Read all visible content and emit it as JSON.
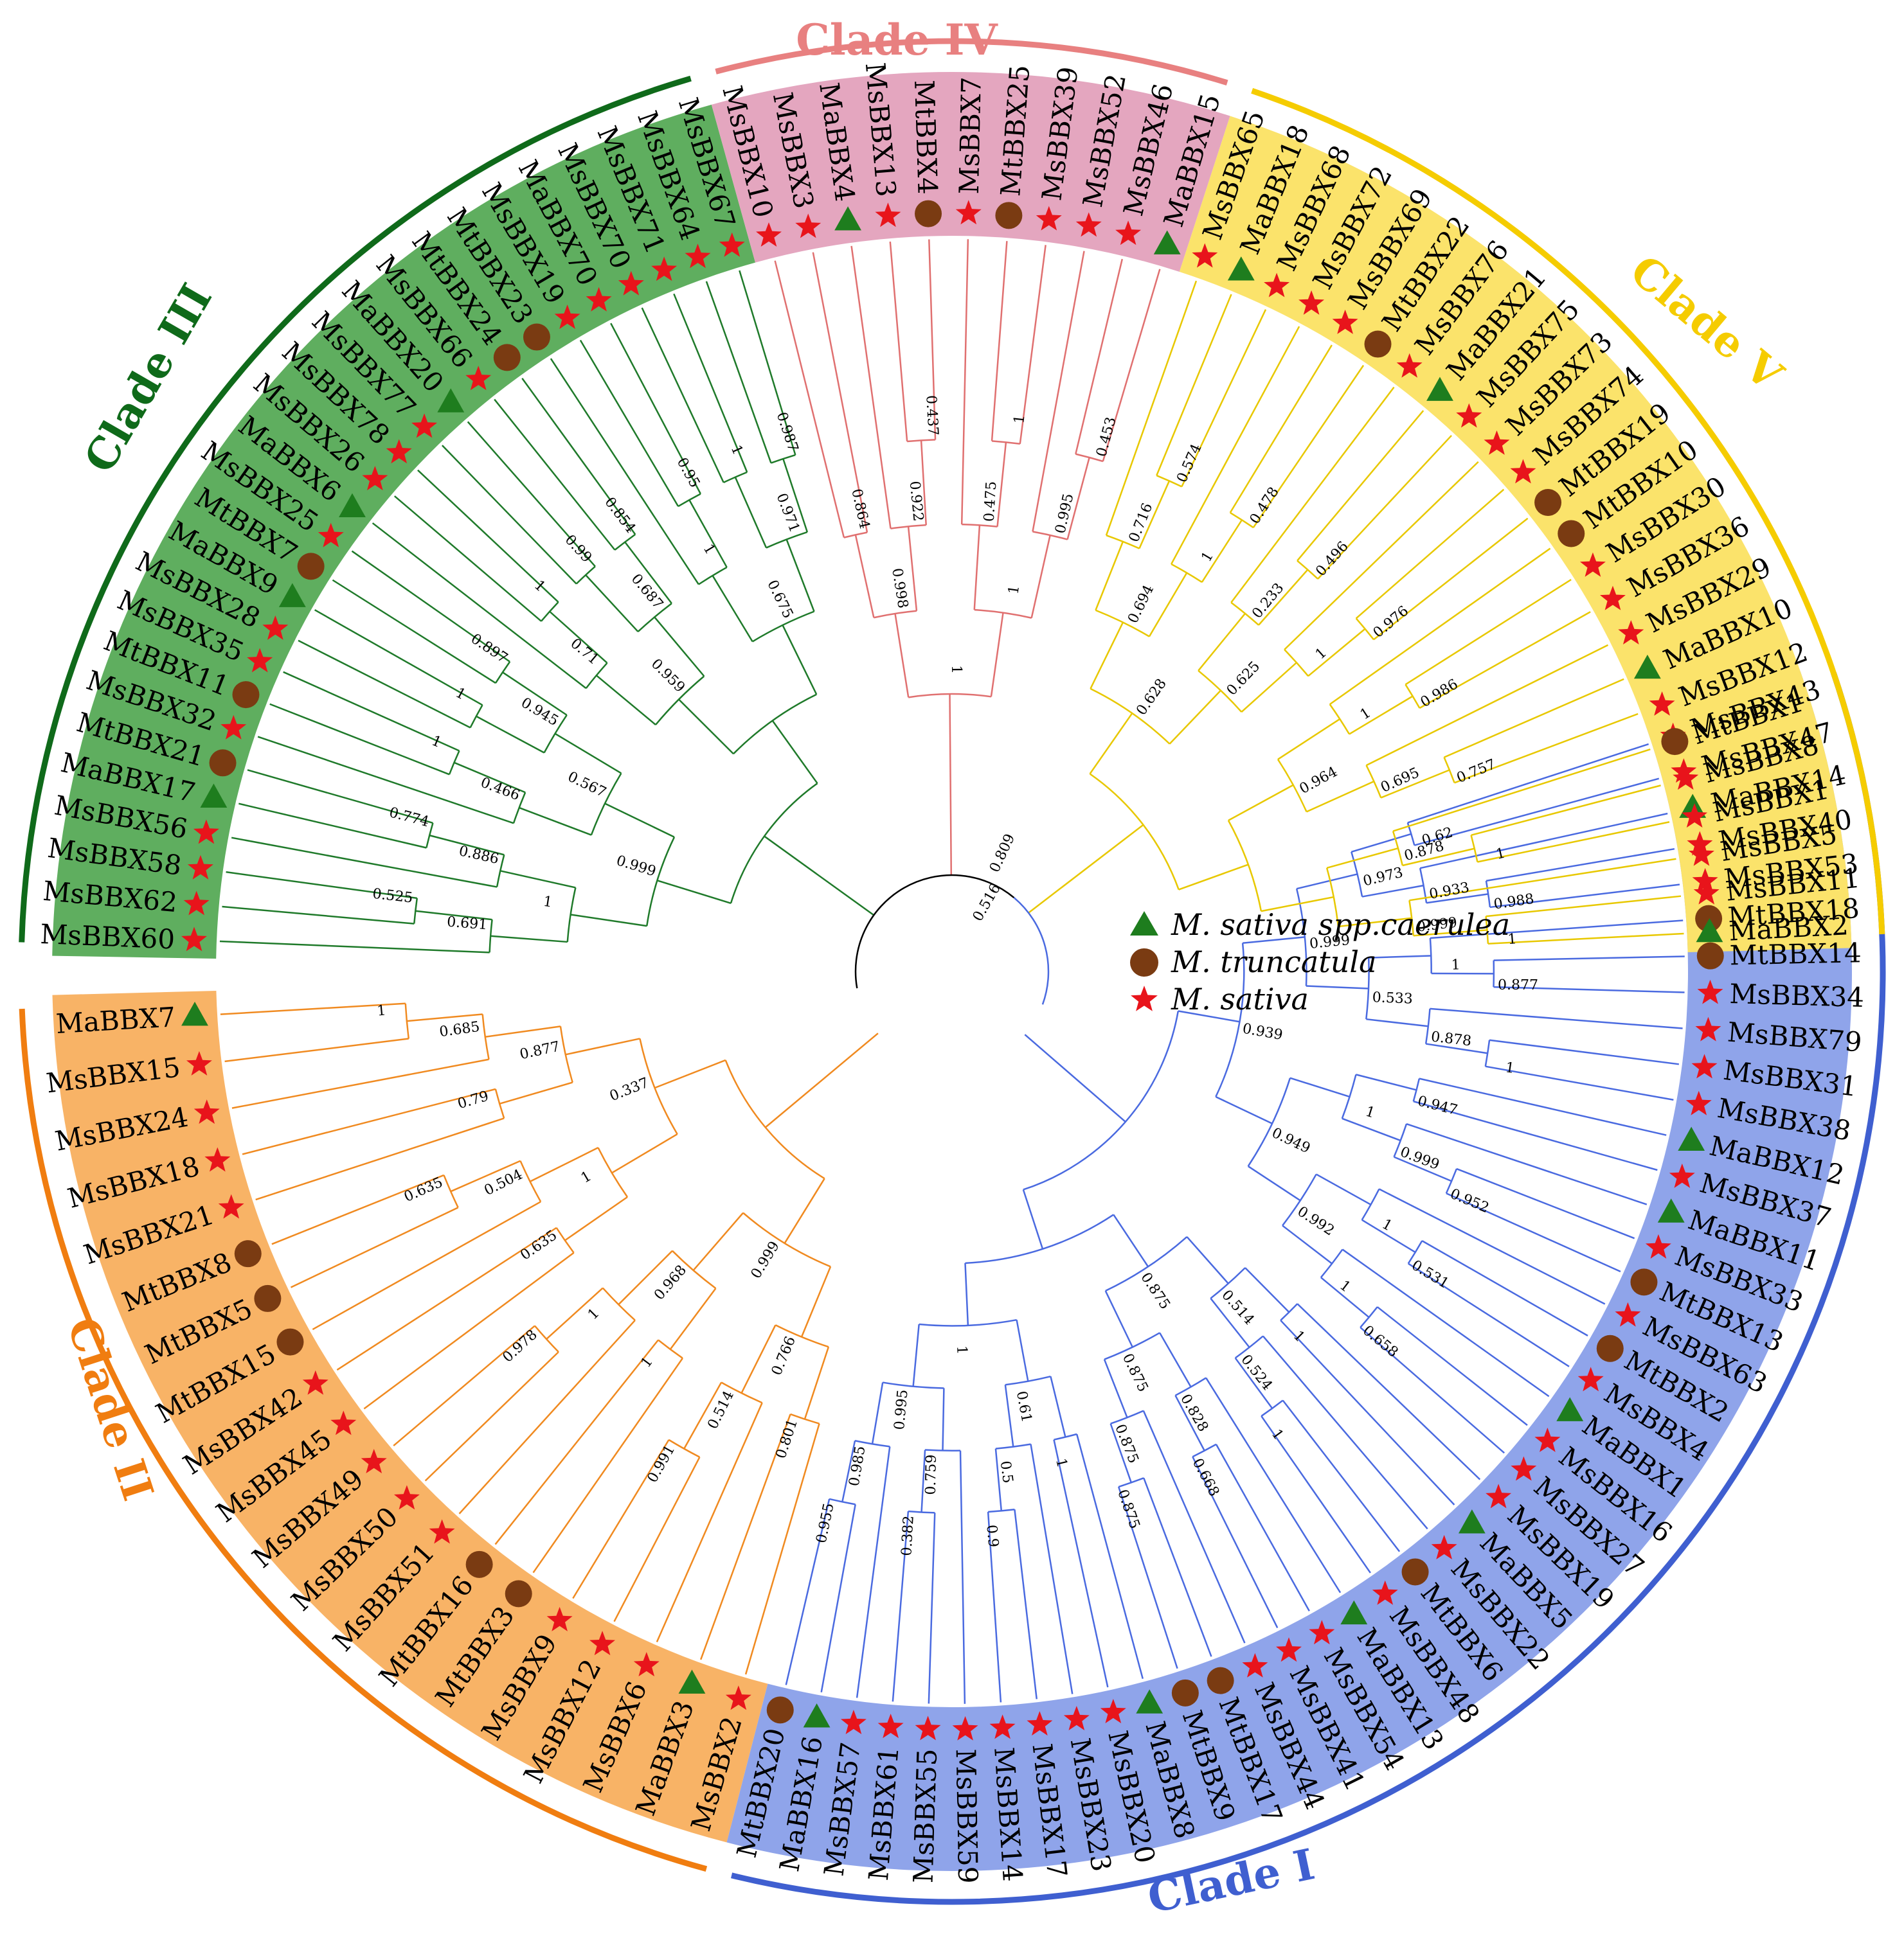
{
  "legend": [
    {
      "marker": "triangle",
      "color": "#1e7d1e",
      "label": "M. sativa spp.caerulea"
    },
    {
      "marker": "circle",
      "color": "#7a3b12",
      "label": "M. truncatula"
    },
    {
      "marker": "star",
      "color": "#e8141b",
      "label": "M. sativa"
    }
  ],
  "clades": [
    {
      "id": "I",
      "label": "Clade I",
      "color": "#3f5fd0",
      "bg": "#8fa4ea",
      "branch": "#4a6ae0",
      "leaves": [
        [
          "MsBBX43",
          "s"
        ],
        [
          "MsBBX47",
          "s"
        ],
        [
          "MaBBX14",
          "t"
        ],
        [
          "MsBBX40",
          "s"
        ],
        [
          "MsBBX53",
          "s"
        ],
        [
          "MtBBX18",
          "c"
        ],
        [
          "MtBBX14",
          "c"
        ],
        [
          "MsBBX34",
          "s"
        ],
        [
          "MsBBX79",
          "s"
        ],
        [
          "MsBBX31",
          "s"
        ],
        [
          "MsBBX38",
          "s"
        ],
        [
          "MaBBX12",
          "t"
        ],
        [
          "MsBBX37",
          "s"
        ],
        [
          "MaBBX11",
          "t"
        ],
        [
          "MsBBX33",
          "s"
        ],
        [
          "MtBBX13",
          "c"
        ],
        [
          "MsBBX63",
          "s"
        ],
        [
          "MtBBX2",
          "c"
        ],
        [
          "MsBBX4",
          "s"
        ],
        [
          "MaBBX1",
          "t"
        ],
        [
          "MsBBX16",
          "s"
        ],
        [
          "MsBBX27",
          "s"
        ],
        [
          "MsBBX19",
          "s"
        ],
        [
          "MaBBX5",
          "t"
        ],
        [
          "MsBBX22",
          "s"
        ],
        [
          "MtBBX6",
          "c"
        ],
        [
          "MsBBX48",
          "s"
        ],
        [
          "MaBBX13",
          "t"
        ],
        [
          "MsBBX54",
          "s"
        ],
        [
          "MsBBX41",
          "s"
        ],
        [
          "MsBBX44",
          "s"
        ],
        [
          "MtBBX17",
          "c"
        ],
        [
          "MtBBX9",
          "c"
        ],
        [
          "MaBBX8",
          "t"
        ],
        [
          "MsBBX20",
          "s"
        ],
        [
          "MsBBX23",
          "s"
        ],
        [
          "MsBBX17",
          "s"
        ],
        [
          "MsBBX14",
          "s"
        ],
        [
          "MsBBX59",
          "s"
        ],
        [
          "MsBBX55",
          "s"
        ],
        [
          "MsBBX61",
          "s"
        ],
        [
          "MsBBX57",
          "s"
        ],
        [
          "MaBBX16",
          "t"
        ],
        [
          "MtBBX20",
          "c"
        ]
      ]
    },
    {
      "id": "II",
      "label": "Clade II",
      "color": "#f07d10",
      "bg": "#f8b366",
      "branch": "#f08a20",
      "leaves": [
        [
          "MsBBX2",
          "s"
        ],
        [
          "MaBBX3",
          "t"
        ],
        [
          "MsBBX6",
          "s"
        ],
        [
          "MsBBX12",
          "s"
        ],
        [
          "MsBBX9",
          "s"
        ],
        [
          "MtBBX3",
          "c"
        ],
        [
          "MtBBX16",
          "c"
        ],
        [
          "MsBBX51",
          "s"
        ],
        [
          "MsBBX50",
          "s"
        ],
        [
          "MsBBX49",
          "s"
        ],
        [
          "MsBBX45",
          "s"
        ],
        [
          "MsBBX42",
          "s"
        ],
        [
          "MtBBX15",
          "c"
        ],
        [
          "MtBBX5",
          "c"
        ],
        [
          "MtBBX8",
          "c"
        ],
        [
          "MsBBX21",
          "s"
        ],
        [
          "MsBBX18",
          "s"
        ],
        [
          "MsBBX24",
          "s"
        ],
        [
          "MsBBX15",
          "s"
        ],
        [
          "MaBBX7",
          "t"
        ]
      ]
    },
    {
      "id": "III",
      "label": "Clade III",
      "color": "#0f6a1a",
      "bg": "#5fae5f",
      "branch": "#1f7a2a",
      "leaves": [
        [
          "MsBBX60",
          "s"
        ],
        [
          "MsBBX62",
          "s"
        ],
        [
          "MsBBX58",
          "s"
        ],
        [
          "MsBBX56",
          "s"
        ],
        [
          "MaBBX17",
          "t"
        ],
        [
          "MtBBX21",
          "c"
        ],
        [
          "MsBBX32",
          "s"
        ],
        [
          "MtBBX11",
          "c"
        ],
        [
          "MsBBX35",
          "s"
        ],
        [
          "MsBBX28",
          "s"
        ],
        [
          "MaBBX9",
          "t"
        ],
        [
          "MtBBX7",
          "c"
        ],
        [
          "MsBBX25",
          "s"
        ],
        [
          "MaBBX6",
          "t"
        ],
        [
          "MsBBX26",
          "s"
        ],
        [
          "MsBBX78",
          "s"
        ],
        [
          "MsBBX77",
          "s"
        ],
        [
          "MaBBX20",
          "t"
        ],
        [
          "MsBBX66",
          "s"
        ],
        [
          "MtBBX24",
          "c"
        ],
        [
          "MtBBX23",
          "c"
        ],
        [
          "MsBBX19",
          "s"
        ],
        [
          "MaBBX70",
          "s"
        ],
        [
          "MsBBX70",
          "s"
        ],
        [
          "MsBBX71",
          "s"
        ],
        [
          "MsBBX64",
          "s"
        ],
        [
          "MsBBX67",
          "s"
        ]
      ]
    },
    {
      "id": "IV",
      "label": "Clade IV",
      "color": "#e88080",
      "bg": "#e4a6bf",
      "branch": "#e07070",
      "leaves": [
        [
          "MsBBX10",
          "s"
        ],
        [
          "MsBBX3",
          "s"
        ],
        [
          "MaBBX4",
          "t"
        ],
        [
          "MsBBX13",
          "s"
        ],
        [
          "MtBBX4",
          "c"
        ],
        [
          "MsBBX7",
          "s"
        ],
        [
          "MtBBX25",
          "c"
        ],
        [
          "MsBBX39",
          "s"
        ],
        [
          "MsBBX52",
          "s"
        ],
        [
          "MsBBX46",
          "s"
        ],
        [
          "MaBBX15",
          "t"
        ]
      ]
    },
    {
      "id": "V",
      "label": "Clade V",
      "color": "#f5cc00",
      "bg": "#fbe36b",
      "branch": "#e8c800",
      "leaves": [
        [
          "MsBBX65",
          "s"
        ],
        [
          "MaBBX18",
          "t"
        ],
        [
          "MsBBX68",
          "s"
        ],
        [
          "MsBBX72",
          "s"
        ],
        [
          "MsBBX69",
          "s"
        ],
        [
          "MtBBX22",
          "c"
        ],
        [
          "MsBBX76",
          "s"
        ],
        [
          "MaBBX21",
          "t"
        ],
        [
          "MsBBX75",
          "s"
        ],
        [
          "MsBBX73",
          "s"
        ],
        [
          "MsBBX74",
          "s"
        ],
        [
          "MtBBX19",
          "c"
        ],
        [
          "MtBBX10",
          "c"
        ],
        [
          "MsBBX30",
          "s"
        ],
        [
          "MsBBX36",
          "s"
        ],
        [
          "MsBBX29",
          "s"
        ],
        [
          "MaBBX10",
          "t"
        ],
        [
          "MsBBX12",
          "s"
        ],
        [
          "MtBBX1",
          "c"
        ],
        [
          "MsBBX8",
          "s"
        ],
        [
          "MsBBX1",
          "s"
        ],
        [
          "MsBBX5",
          "s"
        ],
        [
          "MsBBX11",
          "s"
        ],
        [
          "MaBBX2",
          "t"
        ]
      ]
    }
  ],
  "bootstrap": {
    "I": [
      "0.62",
      "0.988",
      "0.933",
      "0.973",
      "0.877",
      "1",
      "1",
      "0.878",
      "0.533",
      "0.999",
      "0.947",
      "0.952",
      "0.999",
      "1",
      "0.531",
      "1",
      "0.658",
      "1",
      "0.992",
      "0.949",
      "0.939",
      "1",
      "1",
      "0.524",
      "0.514",
      "0.668",
      "0.828",
      "0.875",
      "0.875",
      "0.875",
      "0.875",
      "1",
      "0.9",
      "0.5",
      "0.61",
      "0.382",
      "0.759",
      "0.955",
      "0.985",
      "0.995",
      "1"
    ],
    "II": [
      "0.801",
      "0.991",
      "0.514",
      "0.766",
      "1",
      "0.978",
      "1",
      "0.968",
      "0.999",
      "0.635",
      "0.635",
      "0.504",
      "1",
      "0.79",
      "1",
      "0.685",
      "0.877",
      "0.337"
    ],
    "III": [
      "0.525",
      "0.691",
      "0.774",
      "0.886",
      "1",
      "1",
      "0.466",
      "1",
      "0.897",
      "0.945",
      "0.567",
      "0.999",
      "1",
      "0.71",
      "0.99",
      "0.854",
      "0.687",
      "0.959",
      "0.95",
      "1",
      "1",
      "0.987",
      "0.971",
      "0.675"
    ],
    "IV": [
      "0.864",
      "0.437",
      "0.922",
      "0.998",
      "1",
      "0.475",
      "0.453",
      "0.995",
      "1",
      "1"
    ],
    "V": [
      "0.574",
      "0.716",
      "0.478",
      "1",
      "0.694",
      "0.496",
      "0.233",
      "0.976",
      "1",
      "0.625",
      "0.628",
      "0.986",
      "1",
      "0.757",
      "0.695",
      "0.964",
      "1",
      "0.878",
      "1",
      "0.999"
    ],
    "root": [
      "0.809",
      "0.516"
    ]
  }
}
